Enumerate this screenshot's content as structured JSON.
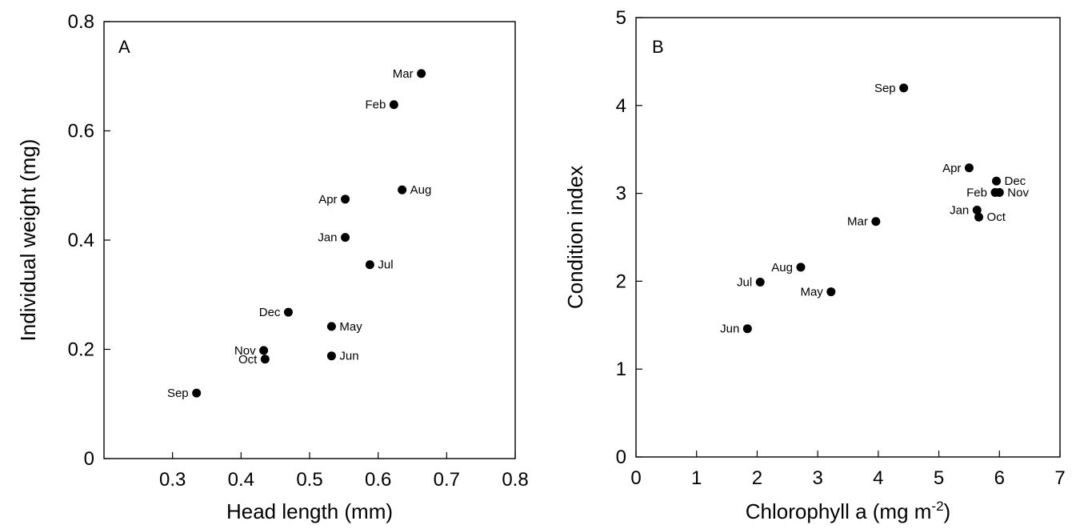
{
  "chart_data": [
    {
      "type": "scatter",
      "panel_label": "A",
      "xlabel": "Head length (mm)",
      "ylabel": "Individual weight (mg)",
      "xlim": [
        0.2,
        0.8
      ],
      "ylim": [
        0,
        0.8
      ],
      "xticks": [
        0.3,
        0.4,
        0.5,
        0.6,
        0.7,
        0.8
      ],
      "xtick_labels": [
        "0.3",
        "0.4",
        "0.5",
        "0.6",
        "0.7",
        "0.8"
      ],
      "yticks": [
        0,
        0.2,
        0.4,
        0.6,
        0.8
      ],
      "ytick_labels": [
        "0",
        "0.2",
        "0.4",
        "0.6",
        "0.8"
      ],
      "grid": false,
      "points": [
        {
          "label": "Mar",
          "x": 0.663,
          "y": 0.705,
          "label_side": "left"
        },
        {
          "label": "Feb",
          "x": 0.623,
          "y": 0.648,
          "label_side": "left"
        },
        {
          "label": "Aug",
          "x": 0.635,
          "y": 0.492,
          "label_side": "right"
        },
        {
          "label": "Apr",
          "x": 0.552,
          "y": 0.475,
          "label_side": "left"
        },
        {
          "label": "Jan",
          "x": 0.552,
          "y": 0.405,
          "label_side": "left"
        },
        {
          "label": "Jul",
          "x": 0.588,
          "y": 0.355,
          "label_side": "right"
        },
        {
          "label": "Dec",
          "x": 0.469,
          "y": 0.268,
          "label_side": "left"
        },
        {
          "label": "May",
          "x": 0.532,
          "y": 0.242,
          "label_side": "right"
        },
        {
          "label": "Nov",
          "x": 0.433,
          "y": 0.198,
          "label_side": "left"
        },
        {
          "label": "Oct",
          "x": 0.435,
          "y": 0.182,
          "label_side": "left"
        },
        {
          "label": "Jun",
          "x": 0.532,
          "y": 0.188,
          "label_side": "right"
        },
        {
          "label": "Sep",
          "x": 0.335,
          "y": 0.12,
          "label_side": "left"
        }
      ]
    },
    {
      "type": "scatter",
      "panel_label": "B",
      "xlabel": "Chlorophyll a (mg m",
      "xlabel_superscript": "-2",
      "xlabel_suffix": ")",
      "ylabel": "Condition index",
      "xlim": [
        0,
        7
      ],
      "ylim": [
        0,
        5
      ],
      "xticks": [
        0,
        1,
        2,
        3,
        4,
        5,
        6,
        7
      ],
      "xtick_labels": [
        "0",
        "1",
        "2",
        "3",
        "4",
        "5",
        "6",
        "7"
      ],
      "yticks": [
        0,
        1,
        2,
        3,
        4,
        5
      ],
      "ytick_labels": [
        "0",
        "1",
        "2",
        "3",
        "4",
        "5"
      ],
      "grid": false,
      "points": [
        {
          "label": "Sep",
          "x": 4.42,
          "y": 4.2,
          "label_side": "left"
        },
        {
          "label": "Apr",
          "x": 5.5,
          "y": 3.29,
          "label_side": "left"
        },
        {
          "label": "Dec",
          "x": 5.95,
          "y": 3.14,
          "label_side": "right"
        },
        {
          "label": "Feb",
          "x": 5.93,
          "y": 3.01,
          "label_side": "left"
        },
        {
          "label": "Nov",
          "x": 6.0,
          "y": 3.01,
          "label_side": "right"
        },
        {
          "label": "Jan",
          "x": 5.63,
          "y": 2.81,
          "label_side": "left"
        },
        {
          "label": "Oct",
          "x": 5.66,
          "y": 2.73,
          "label_side": "right"
        },
        {
          "label": "Mar",
          "x": 3.96,
          "y": 2.68,
          "label_side": "left"
        },
        {
          "label": "Aug",
          "x": 2.72,
          "y": 2.16,
          "label_side": "left"
        },
        {
          "label": "Jul",
          "x": 2.05,
          "y": 1.99,
          "label_side": "left"
        },
        {
          "label": "May",
          "x": 3.22,
          "y": 1.88,
          "label_side": "left"
        },
        {
          "label": "Jun",
          "x": 1.84,
          "y": 1.46,
          "label_side": "left"
        }
      ]
    }
  ]
}
